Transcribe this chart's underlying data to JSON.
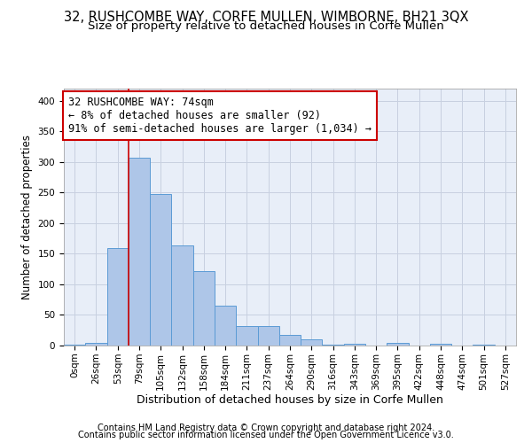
{
  "title": "32, RUSHCOMBE WAY, CORFE MULLEN, WIMBORNE, BH21 3QX",
  "subtitle": "Size of property relative to detached houses in Corfe Mullen",
  "xlabel": "Distribution of detached houses by size in Corfe Mullen",
  "ylabel": "Number of detached properties",
  "footnote1": "Contains HM Land Registry data © Crown copyright and database right 2024.",
  "footnote2": "Contains public sector information licensed under the Open Government Licence v3.0.",
  "bar_labels": [
    "0sqm",
    "26sqm",
    "53sqm",
    "79sqm",
    "105sqm",
    "132sqm",
    "158sqm",
    "184sqm",
    "211sqm",
    "237sqm",
    "264sqm",
    "290sqm",
    "316sqm",
    "343sqm",
    "369sqm",
    "395sqm",
    "422sqm",
    "448sqm",
    "474sqm",
    "501sqm",
    "527sqm"
  ],
  "bar_values": [
    2,
    5,
    160,
    307,
    248,
    163,
    122,
    65,
    32,
    32,
    18,
    10,
    2,
    3,
    0,
    5,
    0,
    3,
    0,
    1,
    0
  ],
  "bar_color": "#aec6e8",
  "bar_edge_color": "#5b9bd5",
  "property_label": "32 RUSHCOMBE WAY: 74sqm",
  "annotation_line1": "← 8% of detached houses are smaller (92)",
  "annotation_line2": "91% of semi-detached houses are larger (1,034) →",
  "vline_x_index": 3,
  "vline_color": "#cc0000",
  "annotation_box_color": "#cc0000",
  "ylim": [
    0,
    420
  ],
  "yticks": [
    0,
    50,
    100,
    150,
    200,
    250,
    300,
    350,
    400
  ],
  "grid_color": "#c8d0e0",
  "bg_color": "#e8eef8",
  "title_fontsize": 10.5,
  "subtitle_fontsize": 9.5,
  "xlabel_fontsize": 9,
  "ylabel_fontsize": 8.5,
  "tick_fontsize": 7.5,
  "annotation_fontsize": 8.5,
  "footnote_fontsize": 7
}
